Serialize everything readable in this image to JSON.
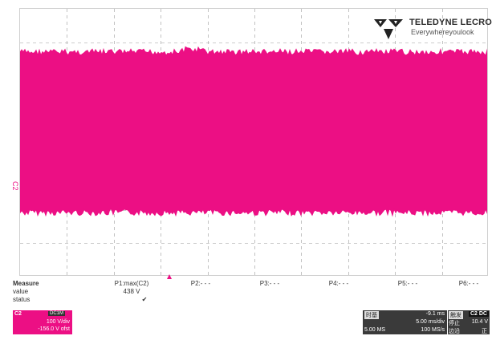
{
  "logo": {
    "brand": "TELEDYNE LECROY",
    "tagline": "Everywhereyoulook"
  },
  "channel_marker": "C2",
  "trace_color": "#ec0f84",
  "measure": {
    "header_label": "Measure",
    "value_label": "value",
    "status_label": "status",
    "params": [
      {
        "name": "P1:max(C2)",
        "value": "438 V",
        "status": "✔"
      },
      {
        "name": "P2:- - -",
        "value": "",
        "status": ""
      },
      {
        "name": "P3:- - -",
        "value": "",
        "status": ""
      },
      {
        "name": "P4:- - -",
        "value": "",
        "status": ""
      },
      {
        "name": "P5:- - -",
        "value": "",
        "status": ""
      },
      {
        "name": "P6:- - -",
        "value": "",
        "status": ""
      }
    ]
  },
  "channel": {
    "tag": "C2",
    "badge": "DC1M",
    "scale": "100 V/div",
    "offset": "-156.0 V ofst"
  },
  "timebase": {
    "title": "时基",
    "delay": "-9.1 ms",
    "tdiv": "5.00 ms/div",
    "samples": "5.00 MS",
    "rate": "100 MS/s"
  },
  "trigger": {
    "title": "触发",
    "badge": "C2 DC",
    "mode": "停止",
    "level": "10.4 V",
    "type": "边沿",
    "slope": "正"
  }
}
